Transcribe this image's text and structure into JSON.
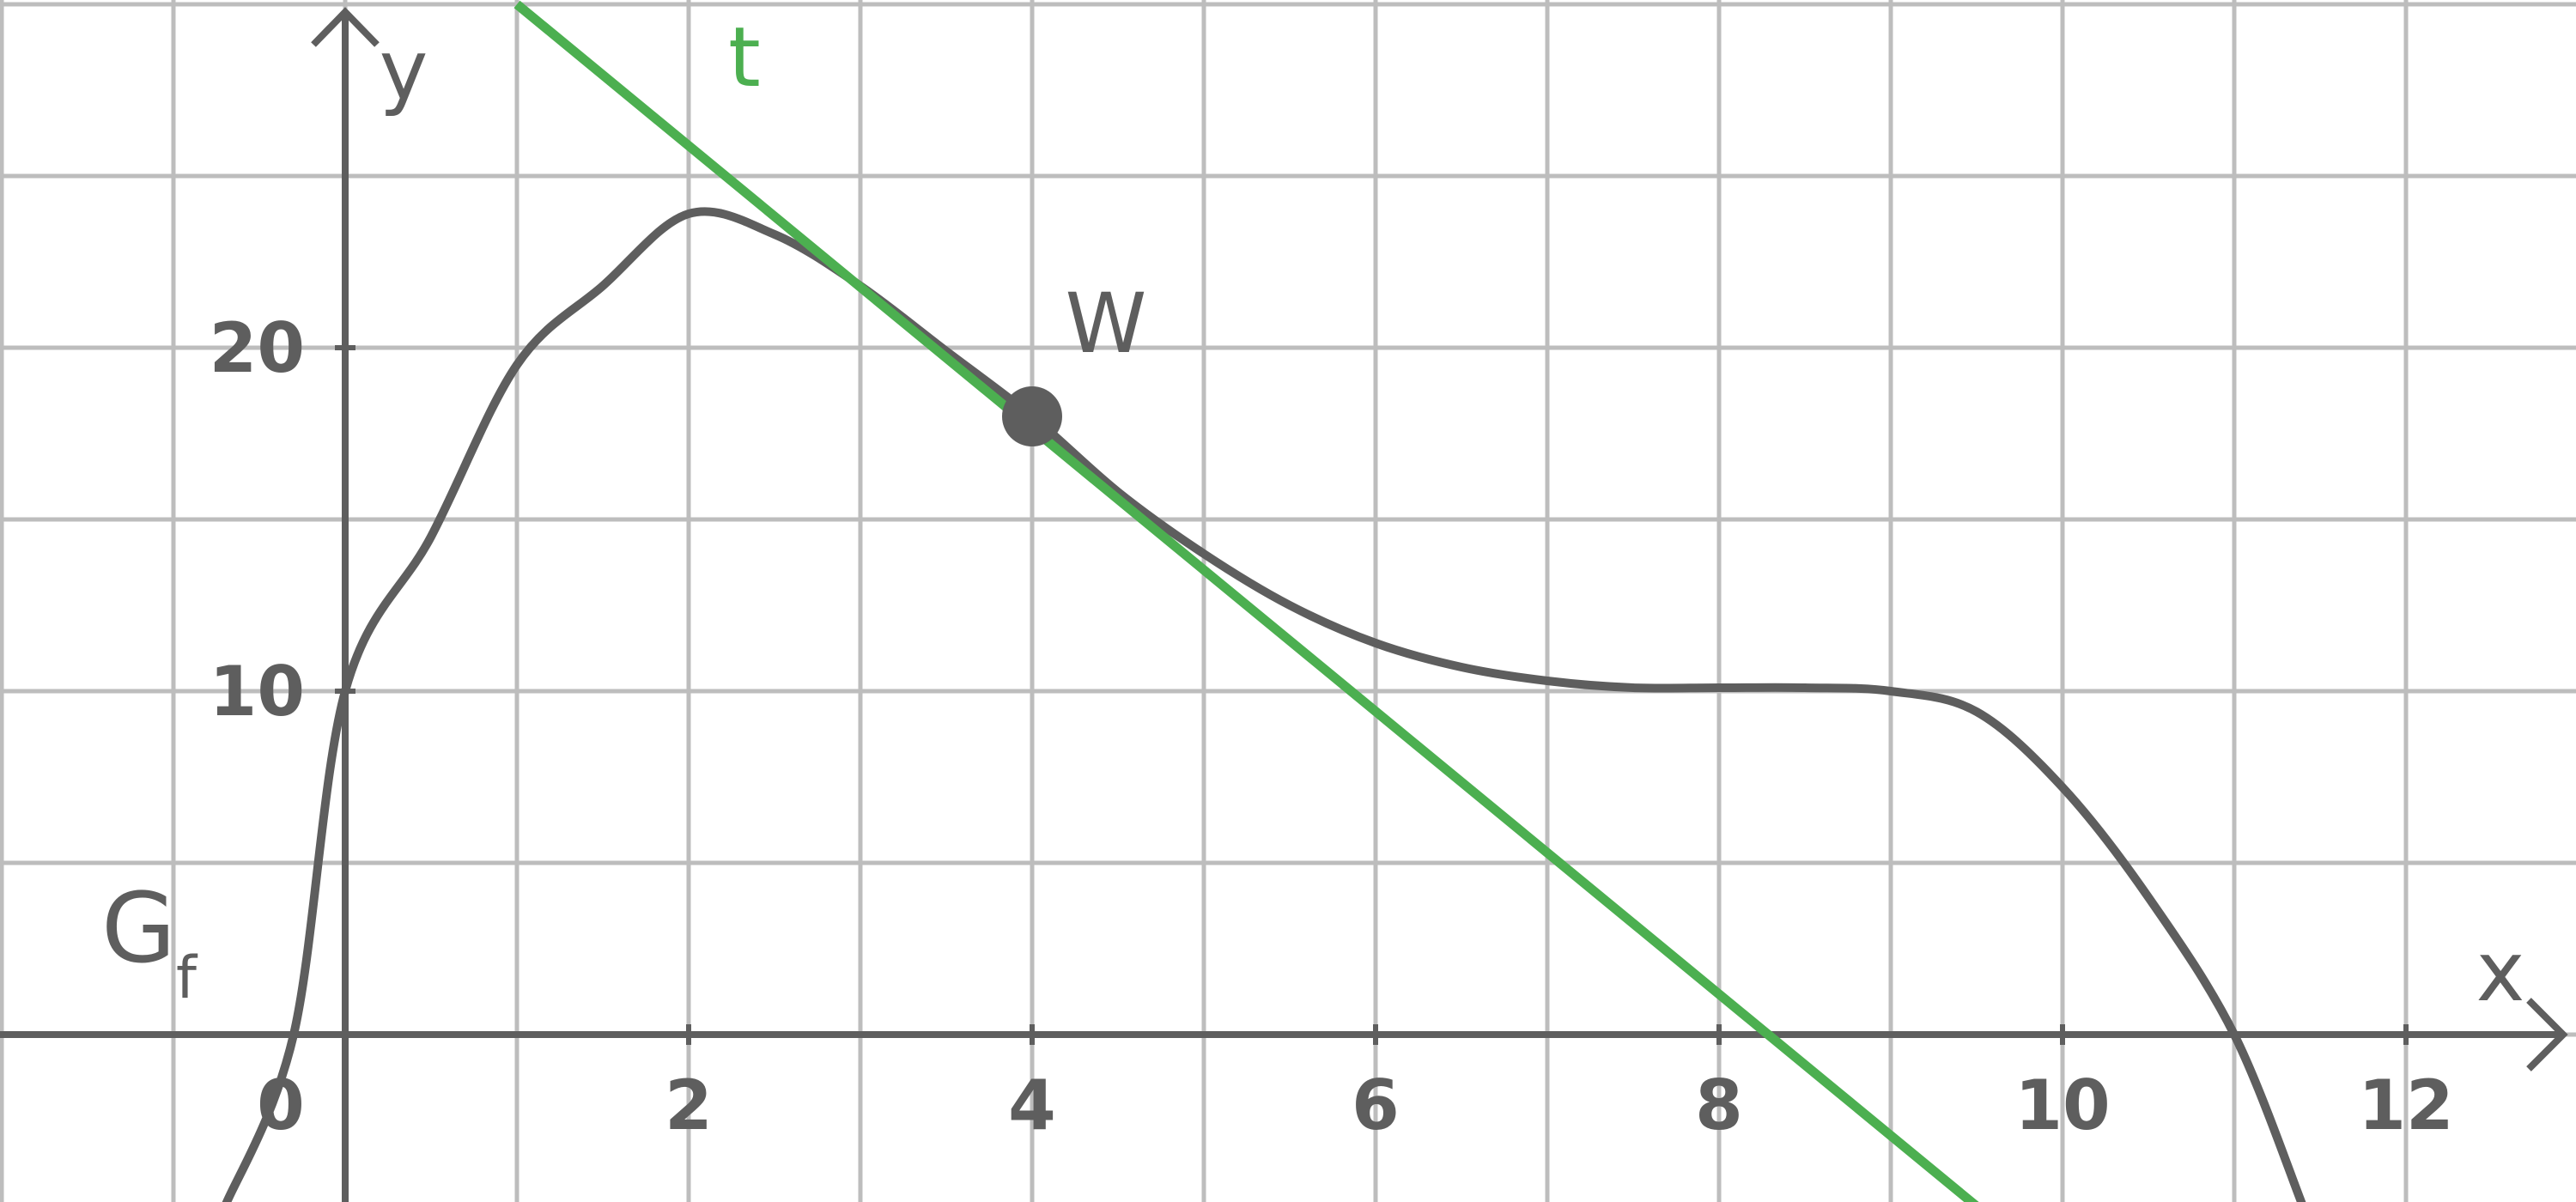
{
  "chart_data": {
    "type": "line",
    "x_axis": {
      "label": "x",
      "range": [
        -2,
        13.5
      ],
      "ticks": [
        0,
        2,
        4,
        6,
        8,
        10,
        12
      ],
      "tick_labels": [
        "0",
        "2",
        "4",
        "6",
        "8",
        "10",
        "12"
      ]
    },
    "y_axis": {
      "label": "y",
      "range": [
        -5,
        30
      ],
      "ticks": [
        10,
        20
      ],
      "tick_labels": [
        "10",
        "20"
      ]
    },
    "grid": true,
    "series": [
      {
        "name": "G_f",
        "label_main": "G",
        "label_sub": "f",
        "color": "#5e5e5e",
        "points": [
          [
            -0.7,
            -5
          ],
          [
            -0.3,
            0
          ],
          [
            0,
            10
          ],
          [
            0.5,
            14.5
          ],
          [
            1,
            19.5
          ],
          [
            1.5,
            21.8
          ],
          [
            2,
            23.9
          ],
          [
            2.5,
            23.3
          ],
          [
            3,
            21.8
          ],
          [
            3.5,
            19.9
          ],
          [
            4,
            18
          ],
          [
            4.5,
            15.8
          ],
          [
            5,
            14
          ],
          [
            5.5,
            12.5
          ],
          [
            6,
            11.4
          ],
          [
            6.5,
            10.7
          ],
          [
            7,
            10.3
          ],
          [
            7.5,
            10.1
          ],
          [
            8,
            10.1
          ],
          [
            8.5,
            10.1
          ],
          [
            9,
            10
          ],
          [
            9.5,
            9.4
          ],
          [
            10,
            7.2
          ],
          [
            10.5,
            4
          ],
          [
            11,
            0
          ],
          [
            11.4,
            -5
          ]
        ]
      },
      {
        "name": "t",
        "label": "t",
        "color": "#4caf50",
        "points": [
          [
            1,
            30
          ],
          [
            9.5,
            -5
          ]
        ]
      }
    ],
    "annotations": [
      {
        "label": "W",
        "x": 4,
        "y": 18
      }
    ]
  }
}
